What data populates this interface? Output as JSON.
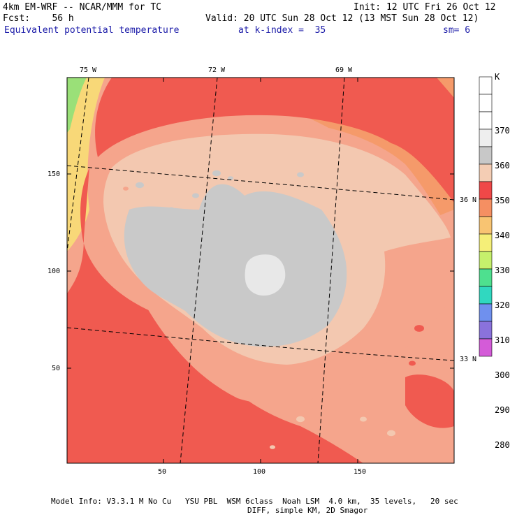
{
  "header": {
    "model": "4km EM-WRF -- NCAR/MMM for TC",
    "init": "Init: 12 UTC Fri 26 Oct 12",
    "forecast": "Fcst:    56 h",
    "valid": "Valid: 20 UTC Sun 28 Oct 12 (13 MST Sun 28 Oct 12)",
    "field": "Equivalent potential temperature",
    "level": "at k-index =  35",
    "smoothing": "sm= 6"
  },
  "map": {
    "lon_labels": [
      "75 W",
      "72 W",
      "69 W"
    ],
    "lat_labels": [
      "36 N",
      "33 N"
    ],
    "x_ticks": [
      50,
      100,
      150
    ],
    "y_ticks": [
      150,
      100,
      50
    ]
  },
  "colorbar": {
    "unit": "K",
    "levels": [
      {
        "label": "370",
        "color": "#ffffff"
      },
      {
        "label": "360",
        "color": "#eeeeee"
      },
      {
        "label": "350",
        "color": "#c8c8c8"
      },
      {
        "label": "340",
        "color": "#f4cdb4"
      },
      {
        "label": "330",
        "color": "#f04848"
      },
      {
        "label": "320",
        "color": "#f58f62"
      },
      {
        "label": "310",
        "color": "#f8c472"
      },
      {
        "label": "300",
        "color": "#f5ef78"
      },
      {
        "label": "290",
        "color": "#c6f06c"
      },
      {
        "label": "280",
        "color": "#4ee08f"
      }
    ],
    "extra_colors": [
      "#ffffff",
      "#30d8c0",
      "#6f90ee",
      "#8a72dc",
      "#a980d8",
      "#d45bd8"
    ]
  },
  "colors": {
    "redband": "#f05a50",
    "salmon": "#f5a58c",
    "orange": "#f59a6a",
    "peach": "#f3c8b0",
    "gray": "#c9c9c9",
    "lightgray": "#e8e8e8",
    "yellow": "#f8d878",
    "green": "#9ae078"
  },
  "footer": {
    "line1": "Model Info: V3.3.1 M No Cu   YSU PBL  WSM 6class  Noah LSM  4.0 km,  35 levels,   20 sec",
    "line2": "DIFF, simple KM, 2D Smagor"
  }
}
